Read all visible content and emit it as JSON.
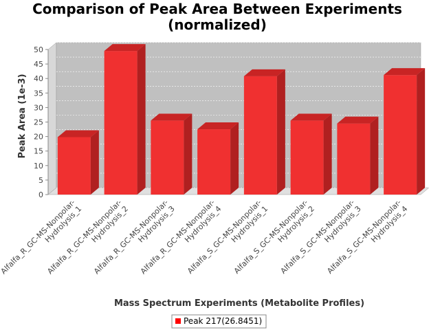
{
  "chart_data": {
    "type": "bar",
    "title_line1": "Comparison of Peak Area Between Experiments",
    "title_line2": "(normalized)",
    "xlabel": "Mass Spectrum Experiments (Metabolite Profiles)",
    "ylabel": "Peak Area (1e-3)",
    "ylim": [
      0,
      50
    ],
    "yticks": [
      0,
      5,
      10,
      15,
      20,
      25,
      30,
      35,
      40,
      45,
      50
    ],
    "categories": [
      [
        "Alfalfa_R_GC-MS-Nonpolar-",
        "Hydrolysis_1"
      ],
      [
        "Alfalfa_R_GC-MS-Nonpolar-",
        "Hydrolysis_2"
      ],
      [
        "Alfalfa_R_GC-MS-Nonpolar-",
        "Hydrolysis_3"
      ],
      [
        "Alfalfa_R_GC-MS-Nonpolar-",
        "Hydrolysis_4"
      ],
      [
        "Alfalfa_S_GC-MS-Nonpolar-",
        "Hydrolysis_1"
      ],
      [
        "Alfalfa_S_GC-MS-Nonpolar-",
        "Hydrolysis_2"
      ],
      [
        "Alfalfa_S_GC-MS-Nonpolar-",
        "Hydrolysis_3"
      ],
      [
        "Alfalfa_S_GC-MS-Nonpolar-",
        "Hydrolysis_4"
      ]
    ],
    "series": [
      {
        "name": "Peak 217(26.8451)",
        "values": [
          19.8,
          49.5,
          25.5,
          22.5,
          40.8,
          25.5,
          24.5,
          41.2
        ]
      }
    ],
    "grid": true,
    "legend_position": "bottom-center",
    "colors": {
      "bar_front": "#f03030",
      "bar_side": "#b02020",
      "bar_top": "#c82424",
      "plot_bg": "#c0c0c0",
      "wall_side": "#d8d8d8",
      "floor": "#e0e0e0"
    }
  }
}
